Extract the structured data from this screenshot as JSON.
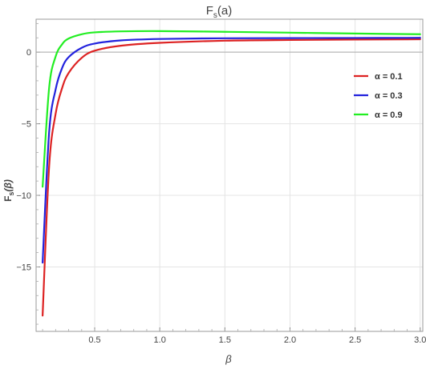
{
  "chart_data": {
    "type": "line",
    "title": "Fs(a)",
    "title_main": "F",
    "title_sub": "s",
    "title_rest": "(a)",
    "xlabel": "β",
    "ylabel": "F s(β)",
    "ylabel_main": "F",
    "ylabel_sub": "s",
    "ylabel_rest": "(β)",
    "xlim": [
      0.05,
      3.02
    ],
    "ylim": [
      -19.5,
      2.3
    ],
    "xticks": [
      0.5,
      1.0,
      1.5,
      2.0,
      2.5,
      3.0
    ],
    "xtick_labels": [
      "0.5",
      "1.0",
      "1.5",
      "2.0",
      "2.5",
      "3.0"
    ],
    "yticks": [
      0,
      -5,
      -10,
      -15
    ],
    "ytick_labels": [
      "0",
      "−5",
      "−10",
      "−15"
    ],
    "grid": true,
    "legend_position": "right",
    "series": [
      {
        "name": "α = 0.1",
        "color": "#dd2222",
        "x": [
          0.1,
          0.15,
          0.2,
          0.25,
          0.3,
          0.4,
          0.5,
          0.7,
          1.0,
          1.5,
          2.0,
          2.5,
          3.0
        ],
        "y": [
          -18.4,
          -8.0,
          -4.3,
          -2.5,
          -1.45,
          -0.4,
          0.1,
          0.45,
          0.65,
          0.8,
          0.85,
          0.88,
          0.9
        ]
      },
      {
        "name": "α = 0.3",
        "color": "#2222dd",
        "x": [
          0.1,
          0.15,
          0.2,
          0.25,
          0.3,
          0.4,
          0.5,
          0.7,
          1.0,
          1.5,
          2.0,
          2.5,
          3.0
        ],
        "y": [
          -14.7,
          -5.6,
          -2.6,
          -1.1,
          -0.35,
          0.3,
          0.6,
          0.82,
          0.92,
          0.97,
          0.98,
          0.99,
          1.0
        ]
      },
      {
        "name": "α = 0.9",
        "color": "#22ee22",
        "x": [
          0.1,
          0.15,
          0.2,
          0.25,
          0.3,
          0.4,
          0.5,
          0.7,
          1.0,
          1.5,
          2.0,
          2.5,
          3.0
        ],
        "y": [
          -9.4,
          -2.5,
          -0.3,
          0.55,
          0.95,
          1.25,
          1.38,
          1.45,
          1.47,
          1.42,
          1.36,
          1.3,
          1.25
        ]
      }
    ]
  }
}
